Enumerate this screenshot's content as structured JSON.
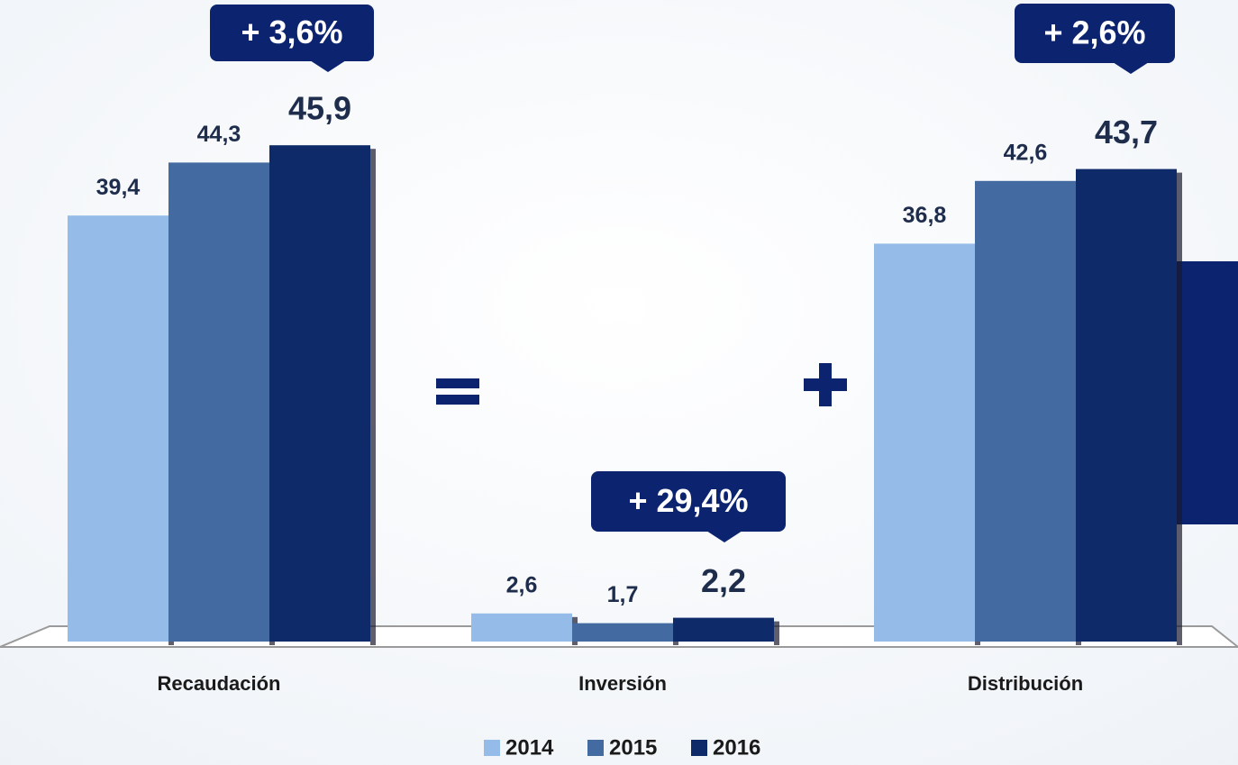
{
  "chart_data": {
    "type": "bar",
    "categories": [
      "Recaudación",
      "Inversión",
      "Distribución"
    ],
    "series": [
      {
        "name": "2014",
        "color": "#95bce8",
        "values": [
          39.4,
          2.6,
          36.8
        ],
        "value_labels": [
          "39,4",
          "2,6",
          "36,8"
        ]
      },
      {
        "name": "2015",
        "color": "#436ba1",
        "values": [
          44.3,
          1.7,
          42.6
        ],
        "value_labels": [
          "44,3",
          "1,7",
          "42,6"
        ]
      },
      {
        "name": "2016",
        "color": "#0e2a69",
        "values": [
          45.9,
          2.2,
          43.7
        ],
        "value_labels": [
          "45,9",
          "2,2",
          "43,7"
        ]
      }
    ],
    "annotations": [
      "+ 3,6%",
      "+ 29,4%",
      "+ 2,6%"
    ],
    "ylim": [
      0,
      50
    ],
    "legend": "bottom"
  }
}
